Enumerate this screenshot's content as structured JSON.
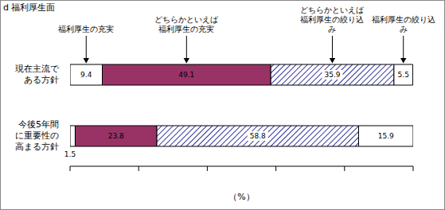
{
  "chart_data": {
    "type": "bar",
    "title": "d 福利厚生面",
    "orientation": "horizontal",
    "stacked": true,
    "data_labels": true,
    "tick_labels": false,
    "categories": [
      "現在主流である方針",
      "今後5年間に重要性の高まる方針"
    ],
    "series": [
      {
        "name": "福利厚生の充実",
        "color": "#ffffff",
        "values": [
          9.4,
          1.5
        ]
      },
      {
        "name": "どちらかといえば福利厚生の充実",
        "color": "#993366",
        "values": [
          49.1,
          23.8
        ]
      },
      {
        "name": "どちらかといえば福利厚生の絞り込み",
        "color": "#333399",
        "values": [
          35.9,
          58.8
        ]
      },
      {
        "name": "福利厚生の絞り込み",
        "color": "#ffffff",
        "values": [
          5.5,
          15.9
        ]
      }
    ],
    "xlabel": "（%）",
    "xlim": [
      0,
      100
    ],
    "xticks": [
      0,
      20,
      40,
      60,
      80,
      100
    ]
  }
}
